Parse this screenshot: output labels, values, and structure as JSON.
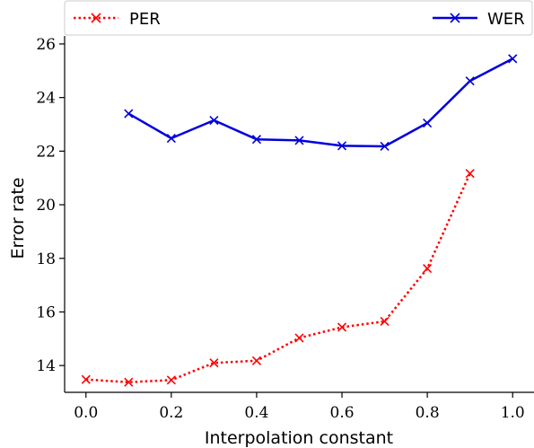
{
  "chart_data": {
    "type": "line",
    "xlabel": "Interpolation constant",
    "ylabel": "Error rate",
    "xlim": [
      -0.05,
      1.05
    ],
    "ylim": [
      13.0,
      26.3
    ],
    "xticks": [
      "0.0",
      "0.2",
      "0.4",
      "0.6",
      "0.8",
      "1.0"
    ],
    "yticks": [
      "14",
      "16",
      "18",
      "20",
      "22",
      "24",
      "26"
    ],
    "grid": false,
    "legend_placement": "top, above plot",
    "series": [
      {
        "name": "PER",
        "color": "#ff0000",
        "line_style": "dotted",
        "marker": "x",
        "x": [
          0.0,
          0.1,
          0.2,
          0.3,
          0.4,
          0.5,
          0.6,
          0.7,
          0.8,
          0.9
        ],
        "y": [
          13.48,
          13.38,
          13.46,
          14.1,
          14.18,
          15.03,
          15.43,
          15.65,
          17.62,
          21.17
        ]
      },
      {
        "name": "WER",
        "color": "#0000dd",
        "line_style": "solid",
        "marker": "x",
        "x": [
          0.1,
          0.2,
          0.3,
          0.4,
          0.5,
          0.6,
          0.7,
          0.8,
          0.9,
          1.0
        ],
        "y": [
          23.4,
          22.48,
          23.15,
          22.44,
          22.4,
          22.2,
          22.18,
          23.05,
          24.62,
          25.45
        ]
      }
    ]
  }
}
